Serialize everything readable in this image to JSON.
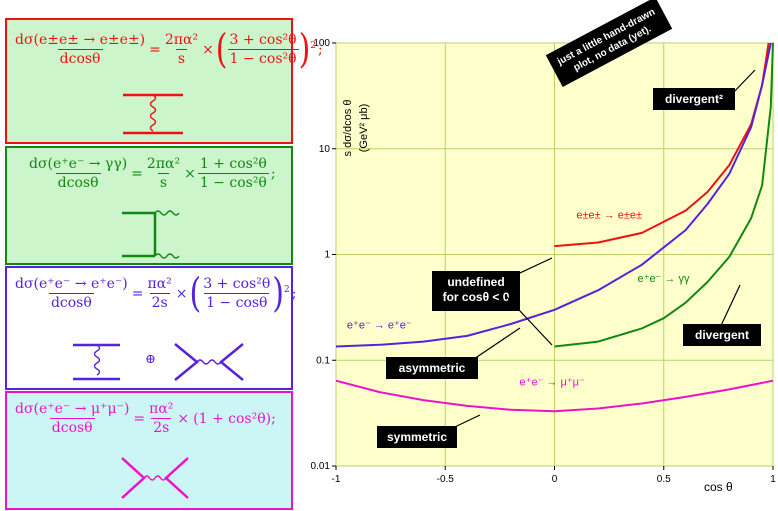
{
  "formulas": {
    "ee_elastic": {
      "lhs_num": "dσ(e±e± → e±e±)",
      "lhs_den": "dcosθ",
      "c_num": "2πα²",
      "c_den": "s",
      "f_num": "3 + cos²θ",
      "f_den": "1 − cos²θ",
      "end": ";"
    },
    "gg": {
      "lhs_num": "dσ(e⁺e⁻ → γγ)",
      "lhs_den": "dcosθ",
      "c_num": "2πα²",
      "c_den": "s",
      "f_num": "1 + cos²θ",
      "f_den": "1 − cos²θ",
      "end": ";"
    },
    "bhabha": {
      "lhs_num": "dσ(e⁺e⁻ → e⁺e⁻)",
      "lhs_den": "dcosθ",
      "c_num": "πα²",
      "c_den": "2s",
      "f_num": "3 + cos²θ",
      "f_den": "1 − cosθ",
      "end": ";",
      "plus": "⊕"
    },
    "mumu": {
      "lhs_num": "dσ(e⁺e⁻ → μ⁺μ⁻)",
      "lhs_den": "dcosθ",
      "c_num": "πα²",
      "c_den": "2s",
      "f_text": "(1 + cos²θ);"
    }
  },
  "colors": {
    "red": "#ee1111",
    "green": "#118811",
    "blue": "#5522dd",
    "magenta": "#ee11cc",
    "plot_bg": "#ffffcc"
  },
  "chart_data": {
    "type": "line",
    "xlabel": "cos θ",
    "ylabel": "s dσ/dcos θ",
    "ylabel_unit": "(GeV² μb)",
    "xlim": [
      -1,
      1
    ],
    "ylim": [
      0.01,
      100
    ],
    "yscale": "log",
    "grid": true,
    "x_ticks": [
      "-1",
      "-0.5",
      "0",
      "0.5",
      "1"
    ],
    "y_ticks": [
      "0.01",
      "0.1",
      "1",
      "10",
      "100"
    ],
    "note": "just a little hand-drawn plot, no data (yet).",
    "series": [
      {
        "name": "e±e± → e±e±",
        "color": "red",
        "points": [
          [
            0,
            1.2
          ],
          [
            0.2,
            1.3
          ],
          [
            0.4,
            1.6
          ],
          [
            0.6,
            2.6
          ],
          [
            0.7,
            3.9
          ],
          [
            0.8,
            7
          ],
          [
            0.9,
            17
          ],
          [
            0.95,
            40
          ],
          [
            0.98,
            100
          ]
        ]
      },
      {
        "name": "e⁺e⁻ → e⁺e⁻",
        "color": "blue",
        "points": [
          [
            -1,
            0.135
          ],
          [
            -0.8,
            0.14
          ],
          [
            -0.6,
            0.15
          ],
          [
            -0.4,
            0.17
          ],
          [
            -0.2,
            0.22
          ],
          [
            0,
            0.3
          ],
          [
            0.2,
            0.46
          ],
          [
            0.4,
            0.8
          ],
          [
            0.6,
            1.7
          ],
          [
            0.7,
            3
          ],
          [
            0.8,
            5.8
          ],
          [
            0.9,
            16
          ],
          [
            0.95,
            40
          ],
          [
            0.99,
            100
          ]
        ]
      },
      {
        "name": "e⁺e⁻ → γγ",
        "color": "green",
        "points": [
          [
            0,
            0.135
          ],
          [
            0.2,
            0.15
          ],
          [
            0.4,
            0.2
          ],
          [
            0.5,
            0.25
          ],
          [
            0.6,
            0.35
          ],
          [
            0.7,
            0.55
          ],
          [
            0.8,
            0.95
          ],
          [
            0.9,
            2.2
          ],
          [
            0.95,
            4.5
          ],
          [
            0.99,
            25
          ],
          [
            1,
            100
          ]
        ]
      },
      {
        "name": "e⁺e⁻ → μ⁺μ⁻",
        "color": "magenta",
        "points": [
          [
            -1,
            0.064
          ],
          [
            -0.8,
            0.05
          ],
          [
            -0.6,
            0.042
          ],
          [
            -0.4,
            0.037
          ],
          [
            -0.2,
            0.034
          ],
          [
            0,
            0.033
          ],
          [
            0.2,
            0.035
          ],
          [
            0.4,
            0.039
          ],
          [
            0.6,
            0.045
          ],
          [
            0.8,
            0.053
          ],
          [
            1,
            0.064
          ]
        ]
      }
    ],
    "annotations": {
      "divergent2": "divergent²",
      "undefined": [
        "undefined",
        "for cosθ < 0"
      ],
      "asymmetric": "asymmetric",
      "symmetric": "symmetric",
      "divergent": "divergent"
    }
  }
}
